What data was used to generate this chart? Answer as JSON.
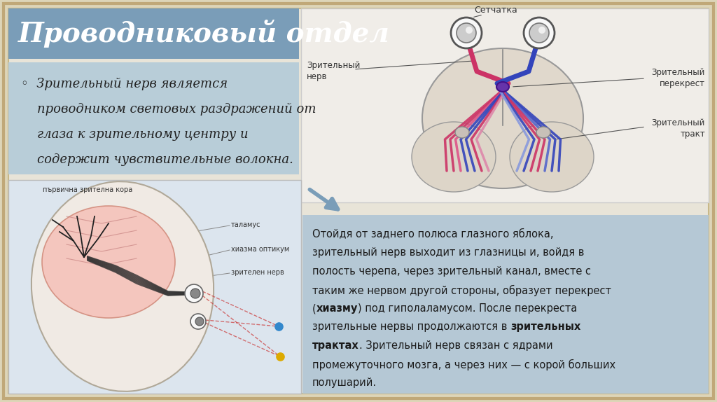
{
  "bg_color": "#ddd5b8",
  "slide_inner_bg": "#e8e4d8",
  "title_bg": "#7a9db8",
  "title_text": "Проводниковый отдел",
  "title_color": "#ffffff",
  "bullet_bg": "#b8cdd8",
  "bullet_lines": [
    "◦  Зрительный нерв является",
    "    проводником световых раздражений от",
    "    глаза к зрительному центру и",
    "    содержит чувствительные волокна."
  ],
  "top_right_bg": "#f0ede8",
  "bottom_left_bg": "#dce5ee",
  "bottom_right_bg": "#b5c8d5",
  "arrow_color": "#7a9db8",
  "label_color": "#333333",
  "body_text_color": "#1a1a1a",
  "setchatka": "Сетчатка",
  "zr_nerv": "Зрительный\nнерв",
  "zr_perekrest": "Зрительный\nперекрест",
  "zr_trakt": "Зрительный\nтракт",
  "br_text_segments": [
    [
      [
        "Отойдя от заднего полюса глазного яблока,",
        false
      ]
    ],
    [
      [
        "зрительный нерв выходит из глазницы и, войдя в",
        false
      ]
    ],
    [
      [
        "полость черепа, через зрительный канал, вместе с",
        false
      ]
    ],
    [
      [
        "таким же нервом другой стороны, образует перекрест",
        false
      ]
    ],
    [
      [
        "(",
        false
      ],
      [
        "хиазму",
        true
      ],
      [
        ") под гиполаламусом. После перекреста",
        false
      ]
    ],
    [
      [
        "зрительные нервы продолжаются в ",
        false
      ],
      [
        "зрительных",
        true
      ]
    ],
    [
      [
        "трактах",
        true
      ],
      [
        ". Зрительный нерв связан с ядрами",
        false
      ]
    ],
    [
      [
        "промежуточного мозга, а через них — с корой больших",
        false
      ]
    ],
    [
      [
        "полушарий.",
        false
      ]
    ]
  ]
}
